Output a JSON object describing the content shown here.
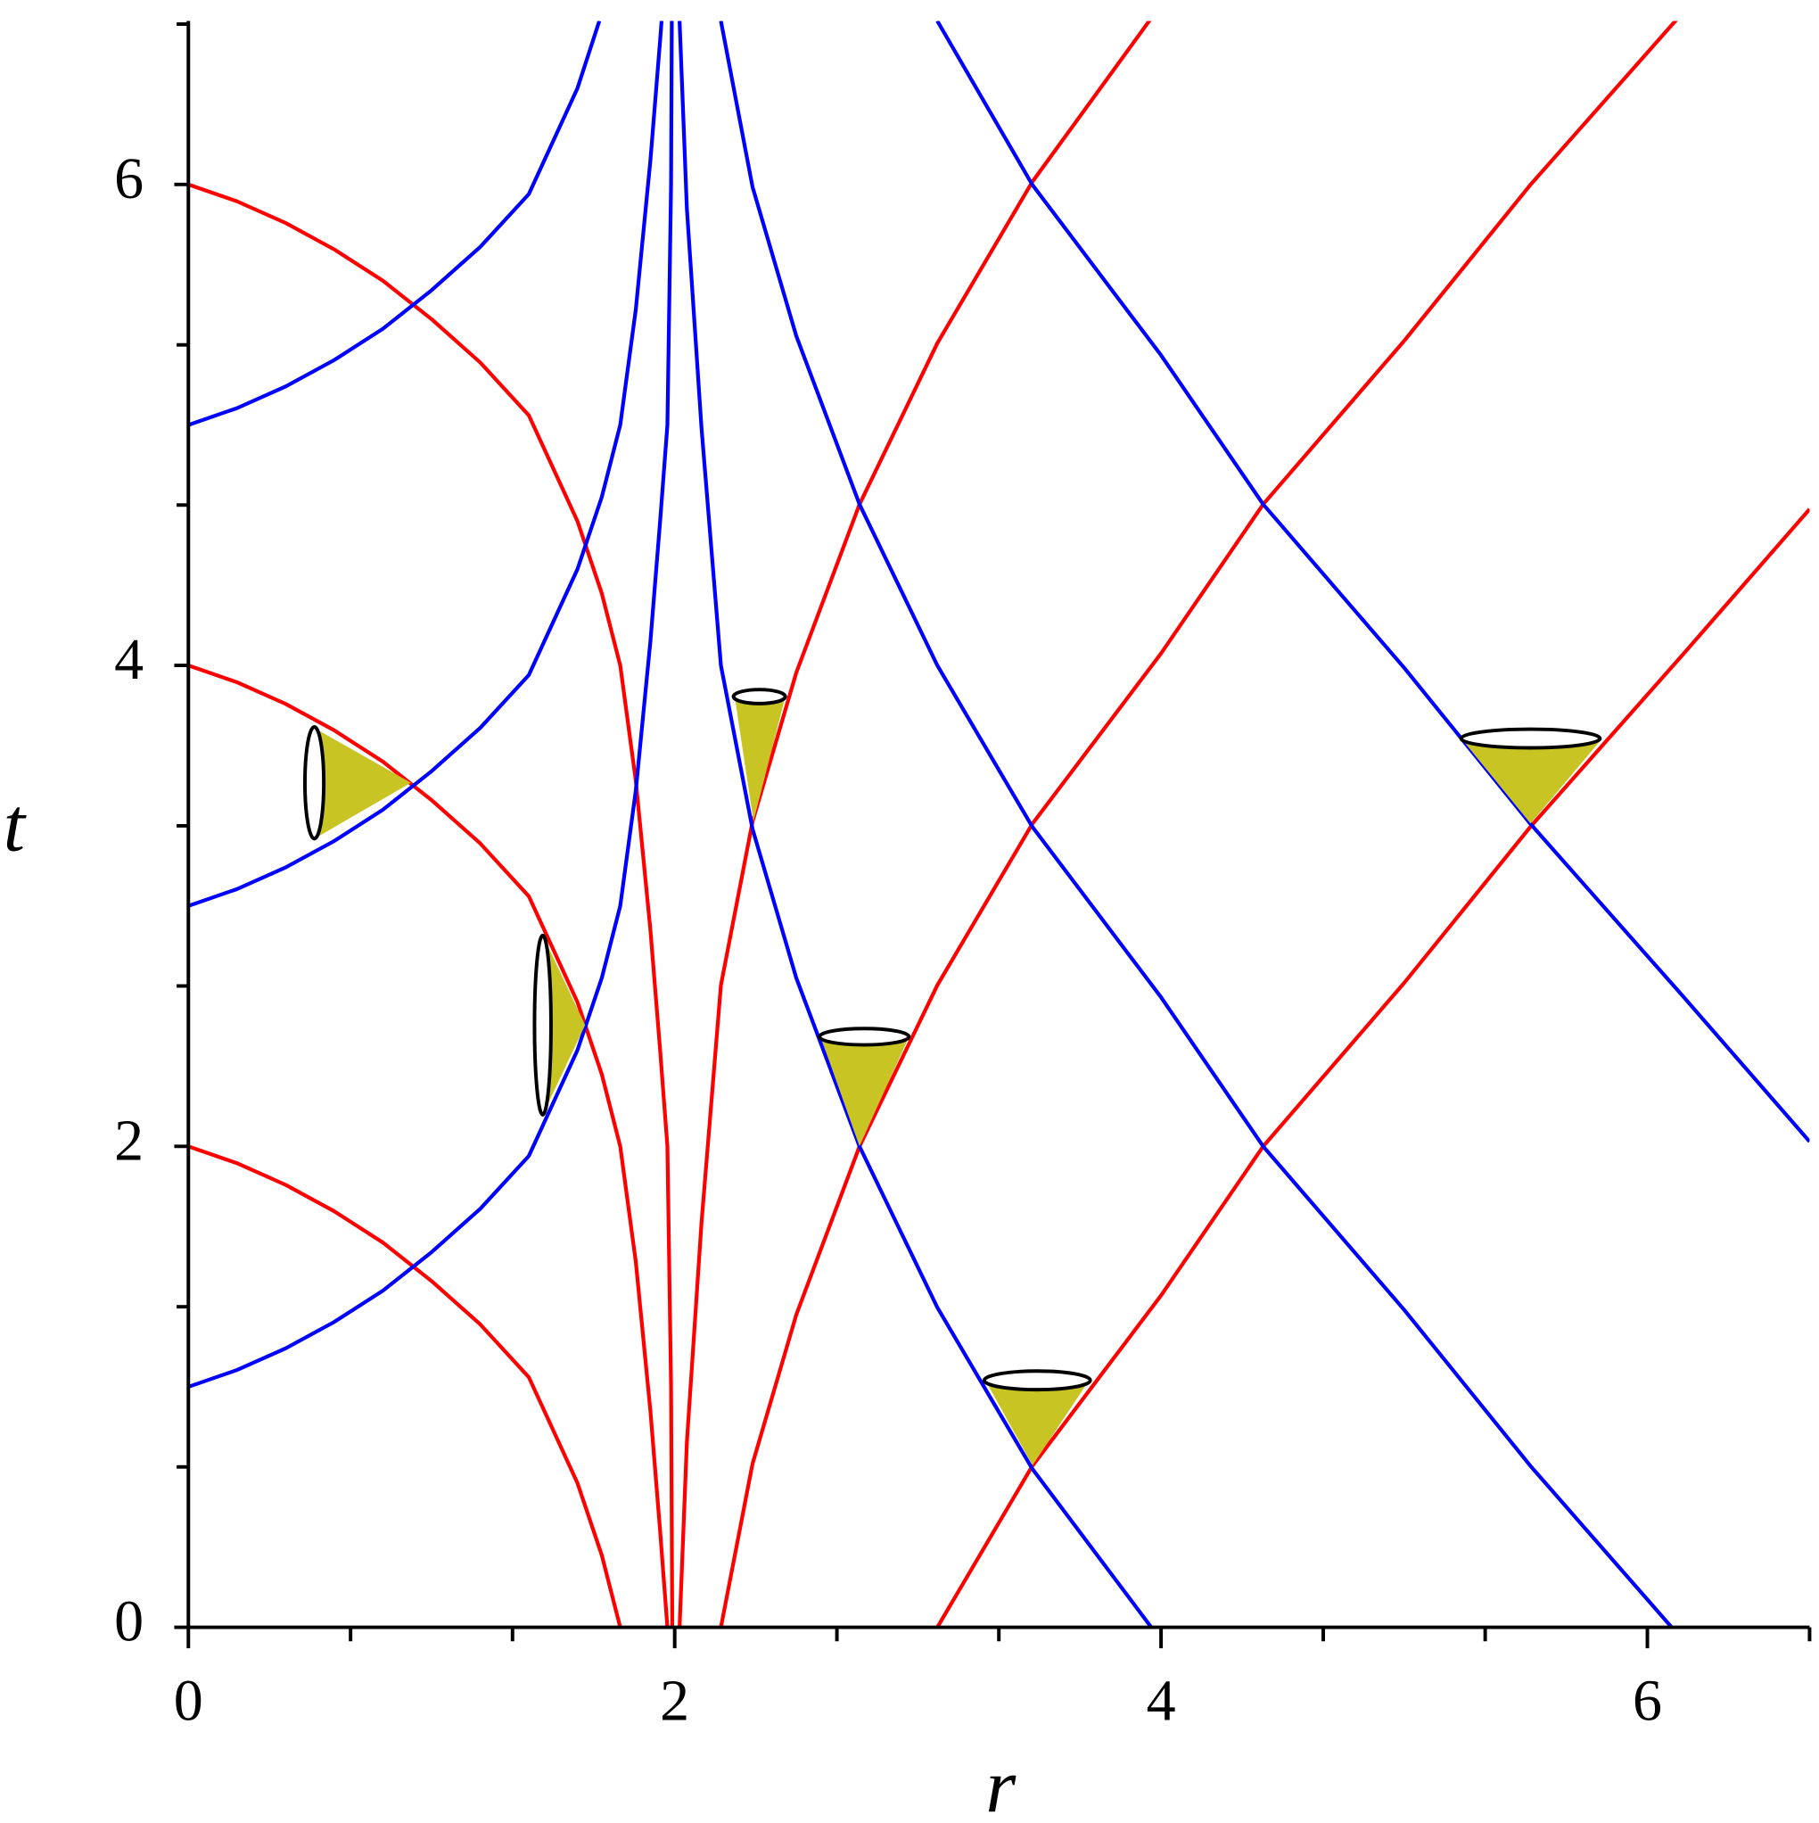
{
  "chart_data": {
    "type": "line",
    "x_label": "r",
    "y_label": "t",
    "xlim": [
      0,
      6.667
    ],
    "ylim": [
      0,
      6.68
    ],
    "xticks": [
      0,
      2,
      4,
      6
    ],
    "yticks": [
      0,
      2,
      4,
      6
    ],
    "xminor_ticks": [
      0.667,
      1.333,
      2.667,
      3.333,
      4.667,
      5.333,
      6.667
    ],
    "yminor_ticks": [
      0.667,
      1.333,
      2.667,
      3.333,
      4.667,
      5.333,
      6.667
    ],
    "series": [
      {
        "color": "#ff0000",
        "x": [
          0,
          0.2,
          0.4,
          0.6,
          0.8,
          1.0,
          1.2,
          1.4,
          1.6,
          1.7,
          1.776
        ],
        "values": [
          2,
          1.93,
          1.84,
          1.73,
          1.6,
          1.44,
          1.26,
          1.04,
          0.6,
          0.3,
          0
        ]
      },
      {
        "color": "#ff0000",
        "x": [
          0,
          0.2,
          0.4,
          0.6,
          0.8,
          1.0,
          1.2,
          1.4,
          1.6,
          1.7,
          1.776,
          1.84,
          1.9,
          1.94,
          1.97
        ],
        "values": [
          4,
          3.93,
          3.84,
          3.73,
          3.6,
          3.44,
          3.26,
          3.04,
          2.6,
          2.3,
          2.0,
          1.52,
          0.9,
          0.4,
          0
        ]
      },
      {
        "color": "#ff0000",
        "x": [
          0,
          0.2,
          0.4,
          0.6,
          0.8,
          1.0,
          1.2,
          1.4,
          1.6,
          1.7,
          1.776,
          1.84,
          1.9,
          1.94,
          1.97,
          1.985,
          1.99
        ],
        "values": [
          6,
          5.93,
          5.84,
          5.73,
          5.6,
          5.44,
          5.26,
          5.04,
          4.6,
          4.3,
          4.0,
          3.52,
          2.9,
          2.4,
          2.0,
          1.0,
          0
        ]
      },
      {
        "color": "#0000ff",
        "x": [
          0,
          0.2,
          0.4,
          0.6,
          0.8,
          1.0,
          1.2,
          1.4,
          1.6,
          1.7,
          1.776,
          1.84,
          1.9,
          1.94,
          1.97,
          1.985,
          1.988
        ],
        "values": [
          1,
          1.07,
          1.16,
          1.27,
          1.4,
          1.56,
          1.74,
          1.96,
          2.4,
          2.7,
          3.0,
          3.48,
          4.1,
          4.6,
          5.0,
          6.0,
          6.68
        ]
      },
      {
        "color": "#0000ff",
        "x": [
          0,
          0.2,
          0.4,
          0.6,
          0.8,
          1.0,
          1.2,
          1.4,
          1.6,
          1.7,
          1.776,
          1.84,
          1.9,
          1.94,
          1.946
        ],
        "values": [
          3,
          3.07,
          3.16,
          3.27,
          3.4,
          3.56,
          3.74,
          3.96,
          4.4,
          4.7,
          5.0,
          5.48,
          6.1,
          6.6,
          6.68
        ]
      },
      {
        "color": "#0000ff",
        "x": [
          0,
          0.2,
          0.4,
          0.6,
          0.8,
          1.0,
          1.2,
          1.4,
          1.6,
          1.69
        ],
        "values": [
          5,
          5.07,
          5.16,
          5.27,
          5.4,
          5.56,
          5.74,
          5.96,
          6.4,
          6.68
        ]
      },
      {
        "color": "#ff0000",
        "x": [
          3.08,
          3.47,
          4.0,
          4.42,
          5.0,
          5.52,
          6.15,
          6.667
        ],
        "values": [
          0,
          0.67,
          1.38,
          2.0,
          2.68,
          3.33,
          4.05,
          4.65
        ]
      },
      {
        "color": "#ff0000",
        "x": [
          2.19,
          2.32,
          2.5,
          2.76,
          3.08,
          3.47,
          4.0,
          4.42,
          5.0,
          5.52,
          6.15
        ],
        "values": [
          0,
          0.68,
          1.3,
          2.0,
          2.67,
          3.34,
          4.05,
          4.67,
          5.35,
          6.0,
          6.72
        ]
      },
      {
        "color": "#ff0000",
        "x": [
          2.02,
          2.05,
          2.11,
          2.19,
          2.32,
          2.5,
          2.76,
          3.08,
          3.47,
          3.98
        ],
        "values": [
          0,
          0.77,
          1.68,
          2.67,
          3.35,
          3.97,
          4.67,
          5.34,
          6.01,
          6.72
        ]
      },
      {
        "color": "#0000ff",
        "x": [
          2.02,
          2.05,
          2.11,
          2.19,
          2.32,
          2.5,
          2.76,
          3.08,
          3.47,
          3.96
        ],
        "values": [
          6.68,
          5.9,
          4.99,
          4.0,
          3.32,
          2.7,
          2.0,
          1.33,
          0.66,
          0
        ]
      },
      {
        "color": "#0000ff",
        "x": [
          2.19,
          2.32,
          2.5,
          2.76,
          3.08,
          3.47,
          4.0,
          4.42,
          5.0,
          5.52,
          6.1
        ],
        "values": [
          6.68,
          5.99,
          5.37,
          4.67,
          4.0,
          3.33,
          2.62,
          2.0,
          1.32,
          0.67,
          0
        ]
      },
      {
        "color": "#0000ff",
        "x": [
          3.08,
          3.47,
          4.0,
          4.42,
          5.0,
          5.52,
          6.15,
          6.667
        ],
        "values": [
          6.68,
          6.0,
          5.29,
          4.67,
          3.99,
          3.34,
          2.62,
          2.02
        ]
      }
    ]
  }
}
